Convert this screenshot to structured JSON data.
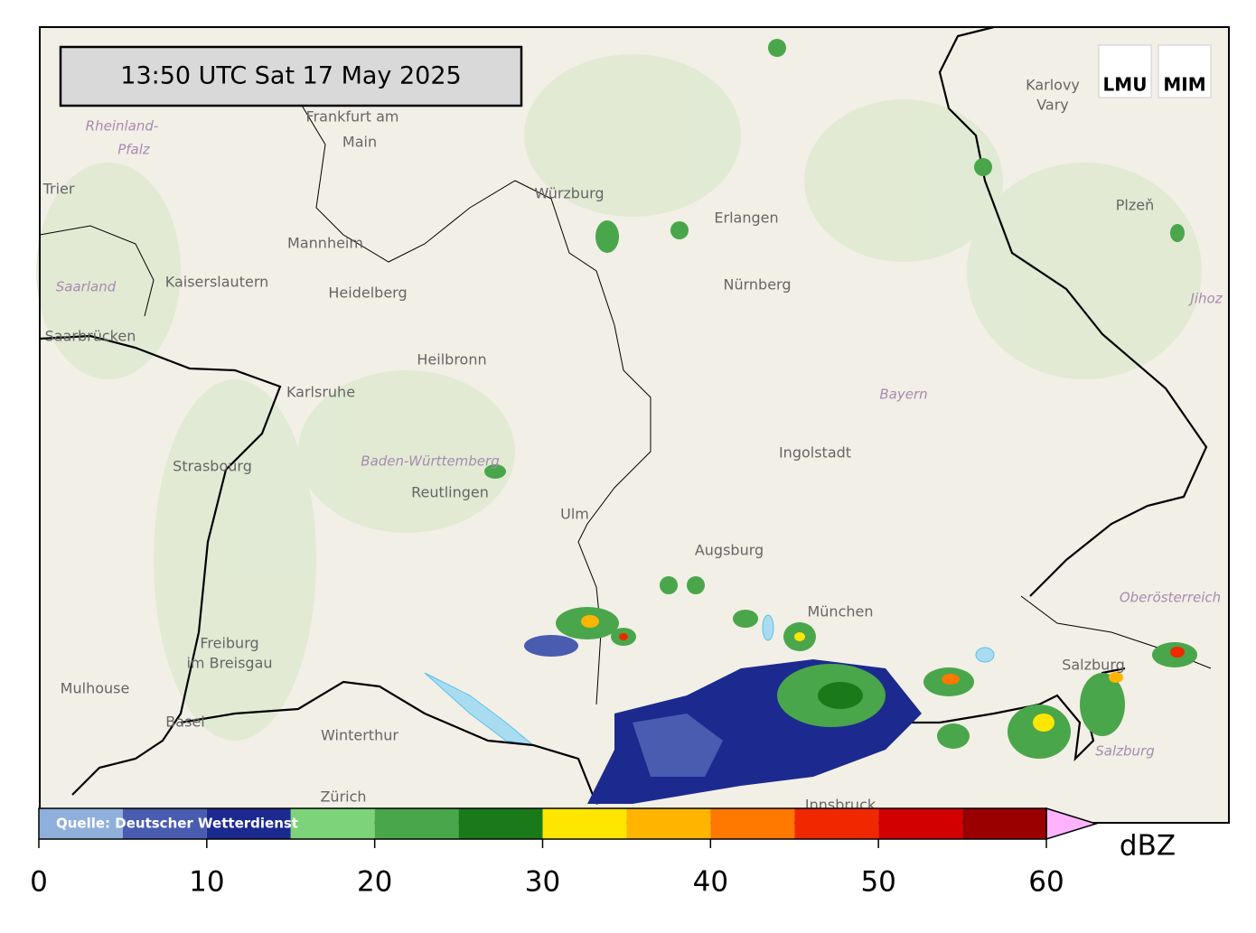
{
  "timestamp": "13:50 UTC  Sat 17 May 2025",
  "source": "Quelle: Deutscher Wetterdienst",
  "logos": [
    "LMU",
    "MIM"
  ],
  "places": [
    "Frankfurt am",
    "Main",
    "Würzburg",
    "Erlangen",
    "Nürnberg",
    "Mannheim",
    "Kaiserslautern",
    "Heidelberg",
    "Heilbronn",
    "Karlsruhe",
    "Strasbourg",
    "Reutlingen",
    "Ulm",
    "Augsburg",
    "Ingolstadt",
    "München",
    "Freiburg",
    "im Breisgau",
    "Mulhouse",
    "Basel",
    "Winterthur",
    "Zürich",
    "Salzburg",
    "Plzeň",
    "Karlovy",
    "Vary",
    "Trier",
    "Saarbrücken",
    "Innsbruck"
  ],
  "regions": [
    "Rheinland-",
    "Pfalz",
    "Saarland",
    "Baden-Württemberg",
    "Bayern",
    "Oberösterreich",
    "Jihoz",
    "Salzburg"
  ],
  "colorbar": {
    "bounds": [
      0,
      5,
      10,
      15,
      20,
      25,
      30,
      35,
      40,
      45,
      50,
      55,
      60
    ],
    "colors": [
      "#8fb0db",
      "#4a5cb0",
      "#1c2a8f",
      "#7dd37a",
      "#4aa64a",
      "#1a7a1a",
      "#ffe600",
      "#ffb400",
      "#ff7800",
      "#f02800",
      "#d20000",
      "#9a0000"
    ],
    "extend_color": "#ffb3ff",
    "ticks": [
      0,
      10,
      20,
      30,
      40,
      50,
      60
    ],
    "unit": "dBZ"
  }
}
